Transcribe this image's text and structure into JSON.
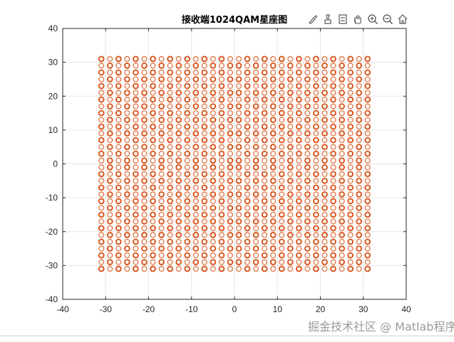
{
  "chart_data": {
    "type": "scatter",
    "title": "接收端1024QAM星座图",
    "xlabel": "",
    "ylabel": "",
    "xlim": [
      -40,
      40
    ],
    "ylim": [
      -40,
      40
    ],
    "xticks": [
      "-40",
      "-30",
      "-20",
      "-10",
      "0",
      "10",
      "20",
      "30",
      "40"
    ],
    "yticks": [
      "40",
      "30",
      "20",
      "10",
      "0",
      "-10",
      "-20",
      "-30",
      "-40"
    ],
    "grid": true,
    "marker": "circle",
    "marker_color": "#D95319",
    "constellation": {
      "levels": [
        -31,
        -29,
        -27,
        -25,
        -23,
        -21,
        -19,
        -17,
        -15,
        -13,
        -11,
        -9,
        -7,
        -5,
        -3,
        -1,
        1,
        3,
        5,
        7,
        9,
        11,
        13,
        15,
        17,
        19,
        21,
        23,
        25,
        27,
        29,
        31
      ]
    }
  },
  "toolbar": {
    "icons": [
      "brush-icon",
      "datatip-icon",
      "data-cursor-icon",
      "pan-icon",
      "zoom-in-icon",
      "zoom-out-icon",
      "home-icon"
    ]
  },
  "watermark": {
    "text": "掘金技术社区 @ Matlab程序猿"
  }
}
